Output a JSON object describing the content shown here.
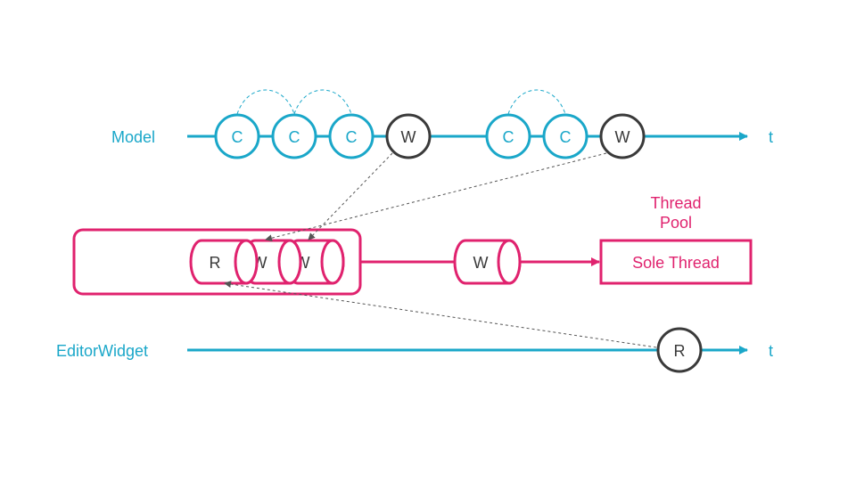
{
  "colors": {
    "cyan": "#1aa7c9",
    "pink": "#e0226e",
    "dark": "#3a3a3a",
    "dashed": "#555555"
  },
  "timelines": {
    "model": {
      "label": "Model",
      "axis_label": "t"
    },
    "editor": {
      "label": "EditorWidget",
      "axis_label": "t"
    }
  },
  "model_events": [
    {
      "id": "c1",
      "label": "C",
      "kind": "change"
    },
    {
      "id": "c2",
      "label": "C",
      "kind": "change"
    },
    {
      "id": "c3",
      "label": "C",
      "kind": "change"
    },
    {
      "id": "w1",
      "label": "W",
      "kind": "write"
    },
    {
      "id": "c4",
      "label": "C",
      "kind": "change"
    },
    {
      "id": "c5",
      "label": "C",
      "kind": "change"
    },
    {
      "id": "w2",
      "label": "W",
      "kind": "write"
    }
  ],
  "editor_events": [
    {
      "id": "r1",
      "label": "R",
      "kind": "read"
    }
  ],
  "queue": {
    "items": [
      {
        "id": "q-r",
        "label": "R"
      },
      {
        "id": "q-w1",
        "label": "W"
      },
      {
        "id": "q-w2",
        "label": "W"
      }
    ]
  },
  "executing": {
    "label": "W"
  },
  "thread_pool": {
    "title_line1": "Thread",
    "title_line2": "Pool",
    "worker_label": "Sole Thread"
  }
}
